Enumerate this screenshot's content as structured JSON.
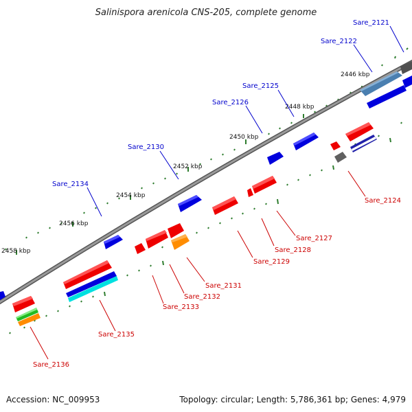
{
  "title": "Salinispora arenicola CNS-205, complete genome",
  "footer": {
    "accession": "Accession: NC_009953",
    "stats": "Topology: circular; Length: 5,786,361 bp; Genes: 4,979"
  },
  "ruler": [
    {
      "label": "2446 kbp"
    },
    {
      "label": "2448 kbp"
    },
    {
      "label": "2450 kbp"
    },
    {
      "label": "2452 kbp"
    },
    {
      "label": "2454 kbp"
    },
    {
      "label": "2456 kbp"
    },
    {
      "label": "2458 kbp"
    }
  ],
  "genes_forward": [
    {
      "label": "Sare_2121"
    },
    {
      "label": "Sare_2122"
    },
    {
      "label": "Sare_2125"
    },
    {
      "label": "Sare_2126"
    },
    {
      "label": "Sare_2130"
    },
    {
      "label": "Sare_2134"
    }
  ],
  "genes_reverse": [
    {
      "label": "Sare_2124"
    },
    {
      "label": "Sare_2127"
    },
    {
      "label": "Sare_2128"
    },
    {
      "label": "Sare_2129"
    },
    {
      "label": "Sare_2131"
    },
    {
      "label": "Sare_2132"
    },
    {
      "label": "Sare_2133"
    },
    {
      "label": "Sare_2135"
    },
    {
      "label": "Sare_2136"
    }
  ],
  "colors": {
    "forward_label": "#0000cc",
    "reverse_label": "#cc0000",
    "forward_gene": "#0000ee",
    "reverse_gene": "#ee0000",
    "backbone": "#808080",
    "tick": "#2e7d2e"
  }
}
